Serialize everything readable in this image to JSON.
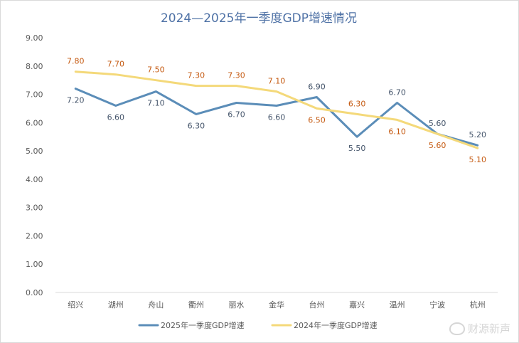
{
  "chart_data": {
    "type": "line",
    "title": "2024—2025年一季度GDP增速情况",
    "categories": [
      "绍兴",
      "湖州",
      "舟山",
      "衢州",
      "丽水",
      "金华",
      "台州",
      "嘉兴",
      "温州",
      "宁波",
      "杭州"
    ],
    "ylim": [
      0,
      9
    ],
    "yticks": [
      "0.00",
      "1.00",
      "2.00",
      "3.00",
      "4.00",
      "5.00",
      "6.00",
      "7.00",
      "8.00",
      "9.00"
    ],
    "grid": false,
    "legend": "bottom",
    "series": [
      {
        "name": "2025年一季度GDP增速",
        "color": "#5b8db8",
        "label_color": "#44546a",
        "values": [
          7.2,
          6.6,
          7.1,
          6.3,
          6.7,
          6.6,
          6.9,
          5.5,
          6.7,
          5.6,
          5.2
        ],
        "labels": [
          "7.20",
          "6.60",
          "7.10",
          "6.30",
          "6.70",
          "6.60",
          "6.90",
          "5.50",
          "6.70",
          "5.60",
          "5.20"
        ],
        "label_side": [
          "below",
          "below",
          "below",
          "below",
          "below",
          "below",
          "above",
          "below",
          "above",
          "above",
          "above"
        ]
      },
      {
        "name": "2024年一季度GDP增速",
        "color": "#f4d97a",
        "label_color": "#c55a11",
        "values": [
          7.8,
          7.7,
          7.5,
          7.3,
          7.3,
          7.1,
          6.5,
          6.3,
          6.1,
          5.6,
          5.1
        ],
        "labels": [
          "7.80",
          "7.70",
          "7.50",
          "7.30",
          "7.30",
          "7.10",
          "6.50",
          "6.30",
          "6.10",
          "5.60",
          "5.10"
        ],
        "label_side": [
          "above",
          "above",
          "above",
          "above",
          "above",
          "above",
          "below",
          "above",
          "below",
          "below",
          "below"
        ]
      }
    ]
  },
  "watermark": {
    "icon": "weibo-icon",
    "text": "财源新声"
  }
}
